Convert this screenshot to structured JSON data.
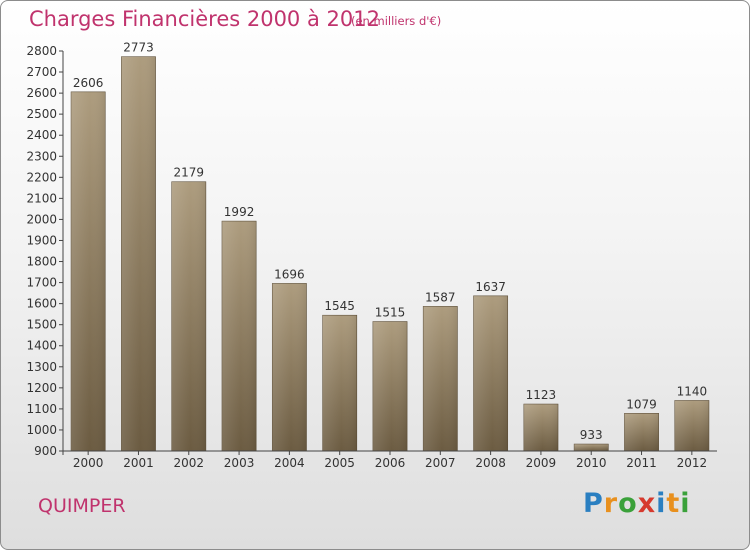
{
  "title": "Charges Financières 2000 à 2012",
  "subtitle": "(en milliers d'€)",
  "city": "QUIMPER",
  "logo": {
    "letters": [
      "P",
      "r",
      "o",
      "x",
      "i",
      "t",
      "i"
    ],
    "colors": [
      "#2a7fc1",
      "#e8901e",
      "#3aa13a",
      "#d63a2e",
      "#2a7fc1",
      "#e8901e",
      "#3aa13a"
    ]
  },
  "colors": {
    "bar": "#7f6e52",
    "accent": "#c0336d"
  },
  "chart_data": {
    "type": "bar",
    "categories": [
      "2000",
      "2001",
      "2002",
      "2003",
      "2004",
      "2005",
      "2006",
      "2007",
      "2008",
      "2009",
      "2010",
      "2011",
      "2012"
    ],
    "values": [
      2606,
      2773,
      2179,
      1992,
      1696,
      1545,
      1515,
      1587,
      1637,
      1123,
      933,
      1079,
      1140
    ],
    "title": "Charges Financières 2000 à 2012",
    "ylim": [
      900,
      2800
    ],
    "yticks": [
      900,
      1000,
      1100,
      1200,
      1300,
      1400,
      1500,
      1600,
      1700,
      1800,
      1900,
      2000,
      2100,
      2200,
      2300,
      2400,
      2500,
      2600,
      2700,
      2800
    ],
    "grid": false,
    "legend": "none"
  }
}
